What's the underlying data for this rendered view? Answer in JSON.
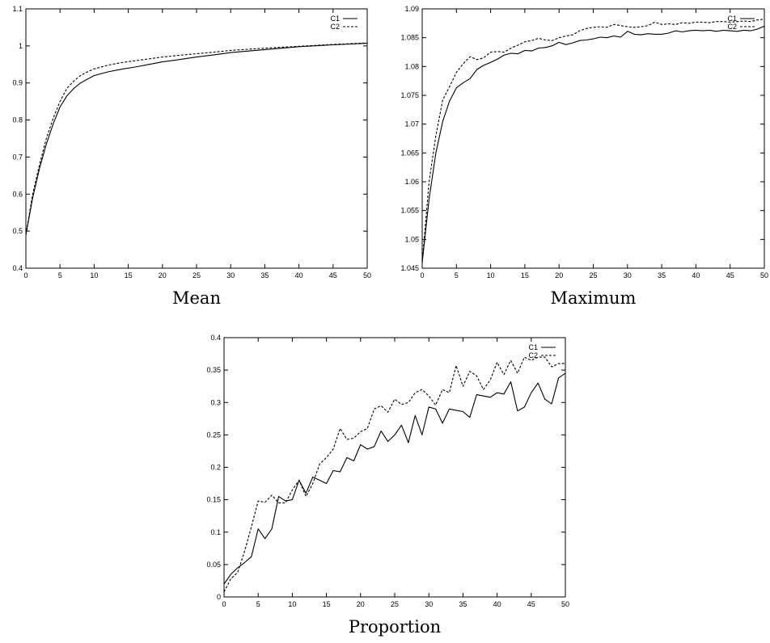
{
  "chart_data": [
    {
      "type": "line",
      "title": "Mean",
      "xlabel": "",
      "ylabel": "",
      "xlim": [
        0,
        50
      ],
      "ylim": [
        0.4,
        1.1
      ],
      "x_ticks": [
        "0",
        "5",
        "10",
        "15",
        "20",
        "25",
        "30",
        "35",
        "40",
        "45",
        "50"
      ],
      "y_ticks": [
        "0.4",
        "0.5",
        "0.6",
        "0.7",
        "0.8",
        "0.9",
        "1",
        "1.1"
      ],
      "legend_position": "top-right",
      "grid": false,
      "series": [
        {
          "name": "C1",
          "style": "solid",
          "x": [
            0,
            1,
            2,
            3,
            4,
            5,
            6,
            7,
            8,
            9,
            10,
            12,
            14,
            16,
            18,
            20,
            22,
            25,
            28,
            30,
            35,
            40,
            45,
            50
          ],
          "values": [
            0.49,
            0.59,
            0.67,
            0.735,
            0.79,
            0.835,
            0.865,
            0.885,
            0.9,
            0.91,
            0.92,
            0.93,
            0.937,
            0.943,
            0.95,
            0.957,
            0.962,
            0.97,
            0.977,
            0.982,
            0.99,
            0.998,
            1.003,
            1.007
          ]
        },
        {
          "name": "C2",
          "style": "dashed",
          "x": [
            0,
            1,
            2,
            3,
            4,
            5,
            6,
            7,
            8,
            9,
            10,
            12,
            14,
            16,
            18,
            20,
            22,
            25,
            28,
            30,
            35,
            40,
            45,
            50
          ],
          "values": [
            0.49,
            0.6,
            0.68,
            0.75,
            0.805,
            0.85,
            0.885,
            0.905,
            0.92,
            0.93,
            0.938,
            0.948,
            0.955,
            0.96,
            0.965,
            0.97,
            0.974,
            0.979,
            0.984,
            0.988,
            0.994,
            0.999,
            1.004,
            1.008
          ]
        }
      ]
    },
    {
      "type": "line",
      "title": "Maximum",
      "xlabel": "",
      "ylabel": "",
      "xlim": [
        0,
        50
      ],
      "ylim": [
        1.045,
        1.09
      ],
      "x_ticks": [
        "0",
        "5",
        "10",
        "15",
        "20",
        "25",
        "30",
        "35",
        "40",
        "45",
        "50"
      ],
      "y_ticks": [
        "1.045",
        "1.05",
        "1.055",
        "1.06",
        "1.065",
        "1.07",
        "1.075",
        "1.08",
        "1.085",
        "1.09"
      ],
      "legend_position": "top-right",
      "grid": false,
      "series": [
        {
          "name": "C1",
          "style": "solid",
          "x": [
            0,
            1,
            2,
            3,
            4,
            5,
            6,
            7,
            8,
            9,
            10,
            11,
            12,
            13,
            14,
            15,
            16,
            17,
            18,
            19,
            20,
            21,
            22,
            23,
            24,
            25,
            26,
            27,
            28,
            29,
            30,
            31,
            32,
            33,
            34,
            35,
            36,
            37,
            38,
            39,
            40,
            41,
            42,
            43,
            44,
            45,
            46,
            47,
            48,
            49,
            50
          ],
          "values": [
            1.046,
            1.057,
            1.065,
            1.0705,
            1.074,
            1.0763,
            1.0772,
            1.0779,
            1.0795,
            1.0802,
            1.0807,
            1.0813,
            1.082,
            1.0823,
            1.0822,
            1.0828,
            1.0827,
            1.0832,
            1.0833,
            1.0836,
            1.0842,
            1.0838,
            1.0841,
            1.0845,
            1.0846,
            1.0848,
            1.0851,
            1.085,
            1.0853,
            1.0851,
            1.0861,
            1.0856,
            1.0855,
            1.0857,
            1.0856,
            1.0856,
            1.0858,
            1.0862,
            1.086,
            1.0862,
            1.0863,
            1.0862,
            1.0863,
            1.0861,
            1.0863,
            1.0862,
            1.0861,
            1.0863,
            1.0862,
            1.0865,
            1.087
          ]
        },
        {
          "name": "C2",
          "style": "dashed",
          "x": [
            0,
            1,
            2,
            3,
            4,
            5,
            6,
            7,
            8,
            9,
            10,
            11,
            12,
            13,
            14,
            15,
            16,
            17,
            18,
            19,
            20,
            21,
            22,
            23,
            24,
            25,
            26,
            27,
            28,
            29,
            30,
            31,
            32,
            33,
            34,
            35,
            36,
            37,
            38,
            39,
            40,
            41,
            42,
            43,
            44,
            45,
            46,
            47,
            48,
            49,
            50
          ],
          "values": [
            1.046,
            1.06,
            1.068,
            1.0742,
            1.0765,
            1.079,
            1.0805,
            1.0817,
            1.0812,
            1.0815,
            1.0825,
            1.0826,
            1.0825,
            1.0832,
            1.0837,
            1.0843,
            1.0845,
            1.0849,
            1.0846,
            1.0845,
            1.085,
            1.0853,
            1.0855,
            1.0862,
            1.0866,
            1.0868,
            1.0869,
            1.0868,
            1.0873,
            1.0871,
            1.0869,
            1.0868,
            1.0869,
            1.0871,
            1.0877,
            1.0873,
            1.0874,
            1.0873,
            1.0876,
            1.0875,
            1.0877,
            1.0877,
            1.0876,
            1.0878,
            1.0878,
            1.0877,
            1.0878,
            1.0879,
            1.0878,
            1.0881,
            1.0882
          ]
        }
      ]
    },
    {
      "type": "line",
      "title": "Proportion",
      "xlabel": "",
      "ylabel": "",
      "xlim": [
        0,
        50
      ],
      "ylim": [
        0,
        0.4
      ],
      "x_ticks": [
        "0",
        "5",
        "10",
        "15",
        "20",
        "25",
        "30",
        "35",
        "40",
        "45",
        "50"
      ],
      "y_ticks": [
        "0",
        "0.05",
        "0.1",
        "0.15",
        "0.2",
        "0.25",
        "0.3",
        "0.35",
        "0.4"
      ],
      "legend_position": "top-right",
      "grid": false,
      "series": [
        {
          "name": "C1",
          "style": "solid",
          "x": [
            0,
            1,
            2,
            3,
            4,
            5,
            6,
            7,
            8,
            9,
            10,
            11,
            12,
            13,
            14,
            15,
            16,
            17,
            18,
            19,
            20,
            21,
            22,
            23,
            24,
            25,
            26,
            27,
            28,
            29,
            30,
            31,
            32,
            33,
            34,
            35,
            36,
            37,
            38,
            39,
            40,
            41,
            42,
            43,
            44,
            45,
            46,
            47,
            48,
            49,
            50
          ],
          "values": [
            0.02,
            0.035,
            0.045,
            0.053,
            0.062,
            0.105,
            0.09,
            0.105,
            0.155,
            0.148,
            0.15,
            0.18,
            0.16,
            0.185,
            0.18,
            0.175,
            0.195,
            0.193,
            0.215,
            0.21,
            0.235,
            0.228,
            0.232,
            0.256,
            0.24,
            0.25,
            0.265,
            0.238,
            0.28,
            0.25,
            0.293,
            0.29,
            0.268,
            0.29,
            0.288,
            0.286,
            0.277,
            0.312,
            0.31,
            0.308,
            0.315,
            0.313,
            0.332,
            0.287,
            0.293,
            0.315,
            0.33,
            0.305,
            0.298,
            0.338,
            0.345
          ]
        },
        {
          "name": "C2",
          "style": "dashed",
          "x": [
            0,
            1,
            2,
            3,
            4,
            5,
            6,
            7,
            8,
            9,
            10,
            11,
            12,
            13,
            14,
            15,
            16,
            17,
            18,
            19,
            20,
            21,
            22,
            23,
            24,
            25,
            26,
            27,
            28,
            29,
            30,
            31,
            32,
            33,
            34,
            35,
            36,
            37,
            38,
            39,
            40,
            41,
            42,
            43,
            44,
            45,
            46,
            47,
            48,
            49,
            50
          ],
          "values": [
            0.008,
            0.028,
            0.038,
            0.07,
            0.108,
            0.148,
            0.146,
            0.157,
            0.145,
            0.145,
            0.165,
            0.18,
            0.155,
            0.175,
            0.205,
            0.215,
            0.228,
            0.26,
            0.243,
            0.245,
            0.255,
            0.26,
            0.29,
            0.295,
            0.285,
            0.305,
            0.297,
            0.3,
            0.315,
            0.32,
            0.31,
            0.296,
            0.32,
            0.315,
            0.357,
            0.325,
            0.348,
            0.341,
            0.32,
            0.335,
            0.362,
            0.343,
            0.365,
            0.345,
            0.37,
            0.365,
            0.37,
            0.37,
            0.355,
            0.36,
            0.36
          ]
        }
      ]
    }
  ]
}
